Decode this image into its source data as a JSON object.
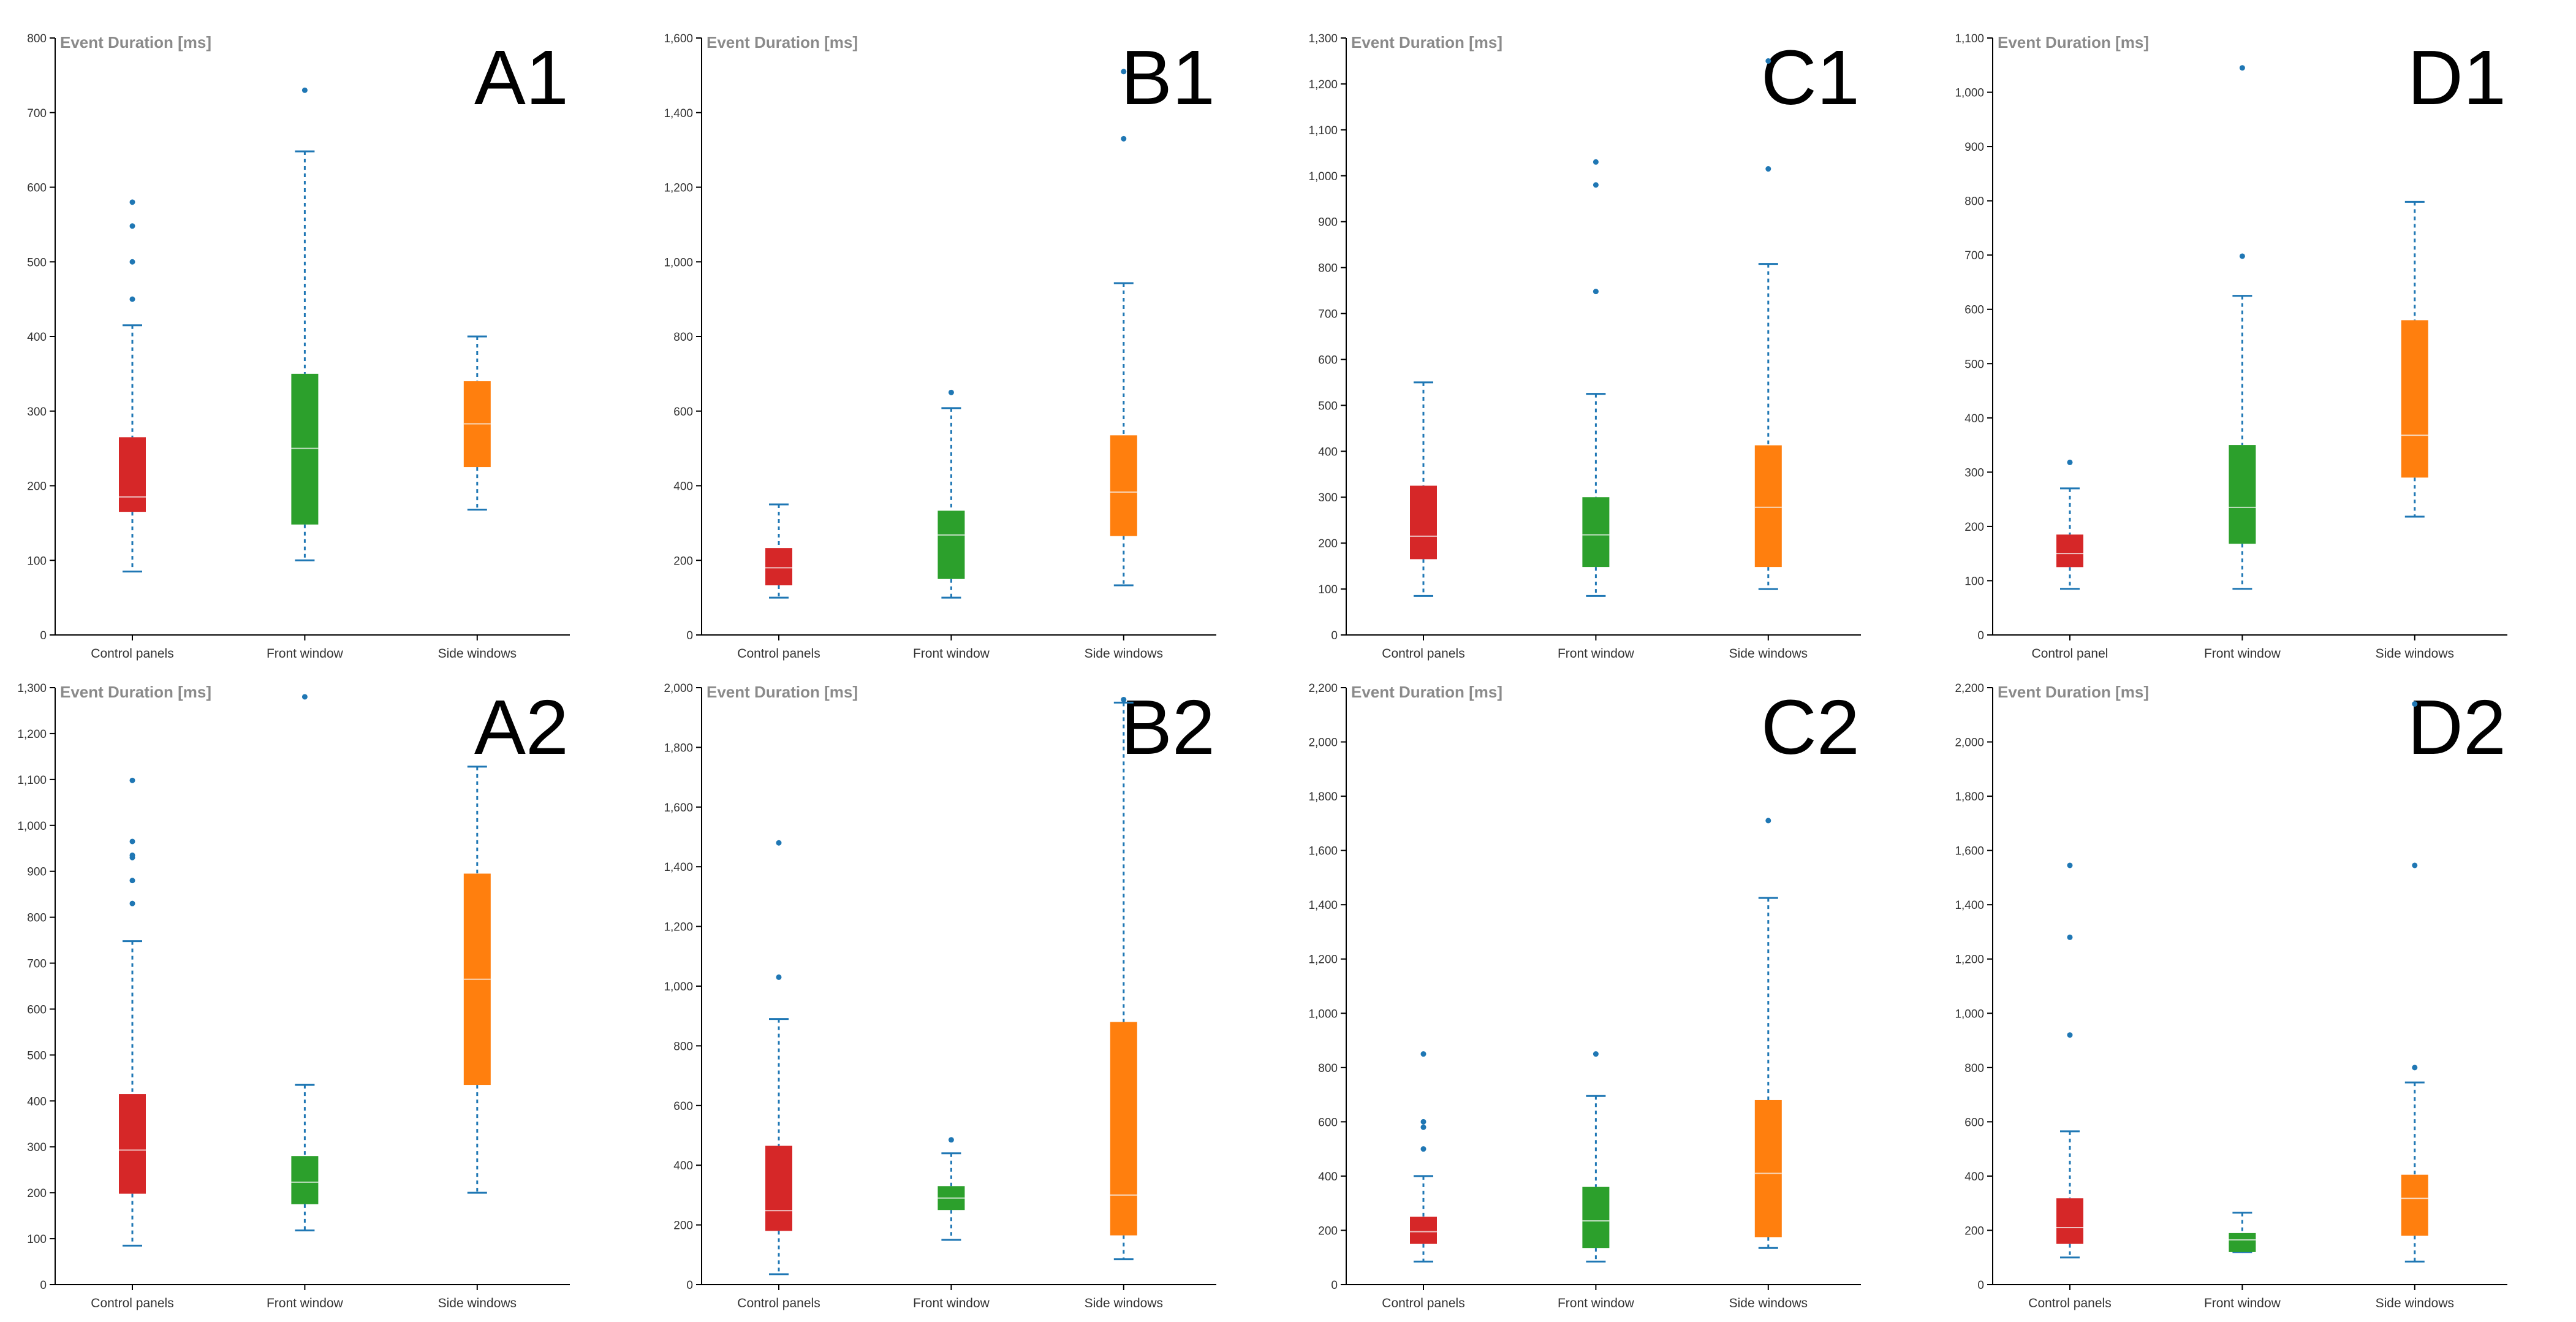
{
  "colors": {
    "control": "#d62728",
    "front": "#2ca02c",
    "side": "#ff7f0e",
    "whisker": "#1f77b4",
    "axis": "#000000",
    "median": "#f5f5f5"
  },
  "chart_data": [
    {
      "type": "box",
      "panel_label": "A1",
      "ylabel": "Event Duration [ms]",
      "ylim": [
        0,
        800
      ],
      "yticks": [
        0,
        100,
        200,
        300,
        400,
        500,
        600,
        700,
        800
      ],
      "yticklabels": [
        "0",
        "100",
        "200",
        "300",
        "400",
        "500",
        "600",
        "700",
        "800"
      ],
      "categories": [
        "Control panels",
        "Front window",
        "Side windows"
      ],
      "boxes": [
        {
          "min": 85,
          "q1": 165,
          "median": 185,
          "q3": 265,
          "max": 415,
          "outliers": [
            450,
            500,
            548,
            580
          ]
        },
        {
          "min": 100,
          "q1": 148,
          "median": 250,
          "q3": 350,
          "max": 648,
          "outliers": [
            730
          ]
        },
        {
          "min": 168,
          "q1": 225,
          "median": 283,
          "q3": 340,
          "max": 400,
          "outliers": []
        }
      ]
    },
    {
      "type": "box",
      "panel_label": "B1",
      "ylabel": "Event Duration [ms]",
      "ylim": [
        0,
        1600
      ],
      "yticks": [
        0,
        200,
        400,
        600,
        800,
        1000,
        1200,
        1400,
        1600
      ],
      "yticklabels": [
        "0",
        "200",
        "400",
        "600",
        "800",
        "1,000",
        "1,200",
        "1,400",
        "1,600"
      ],
      "categories": [
        "Control panels",
        "Front window",
        "Side windows"
      ],
      "boxes": [
        {
          "min": 100,
          "q1": 133,
          "median": 180,
          "q3": 233,
          "max": 350,
          "outliers": []
        },
        {
          "min": 100,
          "q1": 150,
          "median": 268,
          "q3": 333,
          "max": 608,
          "outliers": [
            650
          ]
        },
        {
          "min": 133,
          "q1": 265,
          "median": 383,
          "q3": 535,
          "max": 943,
          "outliers": [
            1330,
            1510
          ]
        }
      ]
    },
    {
      "type": "box",
      "panel_label": "C1",
      "ylabel": "Event Duration [ms]",
      "ylim": [
        0,
        1300
      ],
      "yticks": [
        0,
        100,
        200,
        300,
        400,
        500,
        600,
        700,
        800,
        900,
        1000,
        1100,
        1200,
        1300
      ],
      "yticklabels": [
        "0",
        "100",
        "200",
        "300",
        "400",
        "500",
        "600",
        "700",
        "800",
        "900",
        "1,000",
        "1,100",
        "1,200",
        "1,300"
      ],
      "categories": [
        "Control panels",
        "Front window",
        "Side windows"
      ],
      "boxes": [
        {
          "min": 85,
          "q1": 165,
          "median": 215,
          "q3": 325,
          "max": 550,
          "outliers": []
        },
        {
          "min": 85,
          "q1": 148,
          "median": 218,
          "q3": 300,
          "max": 525,
          "outliers": [
            748,
            980,
            1030
          ]
        },
        {
          "min": 100,
          "q1": 148,
          "median": 278,
          "q3": 413,
          "max": 808,
          "outliers": [
            1015,
            1250
          ]
        }
      ]
    },
    {
      "type": "box",
      "panel_label": "D1",
      "ylabel": "Event Duration [ms]",
      "ylim": [
        0,
        1100
      ],
      "yticks": [
        0,
        100,
        200,
        300,
        400,
        500,
        600,
        700,
        800,
        900,
        1000,
        1100
      ],
      "yticklabels": [
        "0",
        "100",
        "200",
        "300",
        "400",
        "500",
        "600",
        "700",
        "800",
        "900",
        "1,000",
        "1,100"
      ],
      "categories": [
        "Control panel",
        "Front window",
        "Side windows"
      ],
      "boxes": [
        {
          "min": 85,
          "q1": 125,
          "median": 150,
          "q3": 185,
          "max": 270,
          "outliers": [
            318
          ]
        },
        {
          "min": 85,
          "q1": 168,
          "median": 235,
          "q3": 350,
          "max": 625,
          "outliers": [
            698,
            1045
          ]
        },
        {
          "min": 218,
          "q1": 290,
          "median": 368,
          "q3": 580,
          "max": 798,
          "outliers": []
        }
      ]
    },
    {
      "type": "box",
      "panel_label": "A2",
      "ylabel": "Event Duration [ms]",
      "ylim": [
        0,
        1300
      ],
      "yticks": [
        0,
        100,
        200,
        300,
        400,
        500,
        600,
        700,
        800,
        900,
        1000,
        1100,
        1200,
        1300
      ],
      "yticklabels": [
        "0",
        "100",
        "200",
        "300",
        "400",
        "500",
        "600",
        "700",
        "800",
        "900",
        "1,000",
        "1,100",
        "1,200",
        "1,300"
      ],
      "categories": [
        "Control panels",
        "Front window",
        "Side windows"
      ],
      "boxes": [
        {
          "min": 85,
          "q1": 198,
          "median": 293,
          "q3": 415,
          "max": 748,
          "outliers": [
            830,
            880,
            930,
            935,
            965,
            1098
          ]
        },
        {
          "min": 118,
          "q1": 175,
          "median": 223,
          "q3": 280,
          "max": 435,
          "outliers": [
            1280
          ]
        },
        {
          "min": 200,
          "q1": 435,
          "median": 665,
          "q3": 895,
          "max": 1128,
          "outliers": []
        }
      ]
    },
    {
      "type": "box",
      "panel_label": "B2",
      "ylabel": "Event Duration [ms]",
      "ylim": [
        0,
        2000
      ],
      "yticks": [
        0,
        200,
        400,
        600,
        800,
        1000,
        1200,
        1400,
        1600,
        1800,
        2000
      ],
      "yticklabels": [
        "0",
        "200",
        "400",
        "600",
        "800",
        "1,000",
        "1,200",
        "1,400",
        "1,600",
        "1,800",
        "2,000"
      ],
      "categories": [
        "Control panels",
        "Front window",
        "Side windows"
      ],
      "boxes": [
        {
          "min": 35,
          "q1": 180,
          "median": 248,
          "q3": 465,
          "max": 890,
          "outliers": [
            1030,
            1480
          ]
        },
        {
          "min": 150,
          "q1": 250,
          "median": 290,
          "q3": 330,
          "max": 440,
          "outliers": [
            485
          ]
        },
        {
          "min": 85,
          "q1": 165,
          "median": 300,
          "q3": 880,
          "max": 1950,
          "outliers": [
            1960
          ]
        }
      ]
    },
    {
      "type": "box",
      "panel_label": "C2",
      "ylabel": "Event Duration [ms]",
      "ylim": [
        0,
        2200
      ],
      "yticks": [
        0,
        200,
        400,
        600,
        800,
        1000,
        1200,
        1400,
        1600,
        1800,
        2000,
        2200
      ],
      "yticklabels": [
        "0",
        "200",
        "400",
        "600",
        "800",
        "1,000",
        "1,200",
        "1,400",
        "1,600",
        "1,800",
        "2,000",
        "2,200"
      ],
      "categories": [
        "Control panels",
        "Front window",
        "Side windows"
      ],
      "boxes": [
        {
          "min": 85,
          "q1": 150,
          "median": 195,
          "q3": 250,
          "max": 400,
          "outliers": [
            500,
            580,
            600,
            850
          ]
        },
        {
          "min": 85,
          "q1": 135,
          "median": 235,
          "q3": 360,
          "max": 695,
          "outliers": [
            850
          ]
        },
        {
          "min": 135,
          "q1": 175,
          "median": 410,
          "q3": 680,
          "max": 1425,
          "outliers": [
            1710
          ]
        }
      ]
    },
    {
      "type": "box",
      "panel_label": "D2",
      "ylabel": "Event Duration [ms]",
      "ylim": [
        0,
        2200
      ],
      "yticks": [
        0,
        200,
        400,
        600,
        800,
        1000,
        1200,
        1400,
        1600,
        1800,
        2000,
        2200
      ],
      "yticklabels": [
        "0",
        "200",
        "400",
        "600",
        "800",
        "1,000",
        "1,200",
        "1,400",
        "1,600",
        "1,800",
        "2,000",
        "2,200"
      ],
      "categories": [
        "Control panels",
        "Front window",
        "Side windows"
      ],
      "boxes": [
        {
          "min": 100,
          "q1": 150,
          "median": 210,
          "q3": 318,
          "max": 565,
          "outliers": [
            920,
            1280,
            1545
          ]
        },
        {
          "min": 120,
          "q1": 120,
          "median": 165,
          "q3": 190,
          "max": 265,
          "outliers": []
        },
        {
          "min": 85,
          "q1": 180,
          "median": 318,
          "q3": 405,
          "max": 745,
          "outliers": [
            800,
            1545,
            2140
          ]
        }
      ]
    }
  ]
}
